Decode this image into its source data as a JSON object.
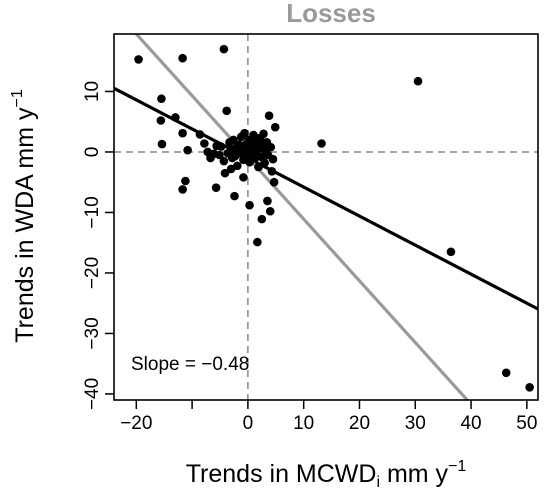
{
  "chart_data": {
    "type": "scatter",
    "title": "Losses",
    "xlabel": "Trends in MCWD",
    "xlabel_subscript": "i",
    "xlabel_units": " mm y",
    "xlabel_superscript": "−1",
    "ylabel": "Trends in WDA mm  y",
    "ylabel_superscript": "−1",
    "annotation": "Slope = −0.48",
    "xlim": [
      -24,
      52
    ],
    "ylim": [
      -41,
      19.5
    ],
    "x_ticks": [
      -20,
      -10,
      0,
      10,
      20,
      30,
      40,
      50
    ],
    "x_tick_labels": [
      "−20",
      "",
      "0",
      "10",
      "20",
      "30",
      "40",
      "50"
    ],
    "y_ticks": [
      -40,
      -30,
      -20,
      -10,
      0,
      10
    ],
    "y_tick_labels": [
      "−40",
      "−30",
      "−20",
      "−10",
      "0",
      "10"
    ],
    "reference_lines": {
      "x": 0,
      "y": 0,
      "style": "dashed"
    },
    "fit_lines": [
      {
        "color": "#000000",
        "slope": -0.48,
        "intercept": -1.0
      },
      {
        "color": "#9a9a9a",
        "slope": -1.02,
        "intercept": -0.9
      }
    ],
    "points": [
      [
        -19.6,
        15.3
      ],
      [
        -15.5,
        8.8
      ],
      [
        -15.6,
        5.2
      ],
      [
        -15.4,
        1.3
      ],
      [
        -13.0,
        5.7
      ],
      [
        -11.7,
        15.5
      ],
      [
        -11.7,
        3.1
      ],
      [
        -10.8,
        0.3
      ],
      [
        -11.2,
        -4.8
      ],
      [
        -11.7,
        -6.2
      ],
      [
        -4.3,
        17.0
      ],
      [
        -8.6,
        2.9
      ],
      [
        -7.8,
        1.4
      ],
      [
        -7.2,
        0.0
      ],
      [
        -6.7,
        -1.0
      ],
      [
        -6.1,
        -0.3
      ],
      [
        -5.6,
        1.0
      ],
      [
        -5.1,
        -0.5
      ],
      [
        -4.8,
        0.9
      ],
      [
        -4.3,
        -1.5
      ],
      [
        -4.1,
        -3.5
      ],
      [
        -3.8,
        6.8
      ],
      [
        -3.6,
        -0.2
      ],
      [
        -3.3,
        1.6
      ],
      [
        -3.0,
        0.4
      ],
      [
        -2.8,
        -1.0
      ],
      [
        -2.6,
        2.0
      ],
      [
        -2.3,
        -0.7
      ],
      [
        -2.0,
        0.8
      ],
      [
        -1.9,
        -2.3
      ],
      [
        -1.6,
        1.2
      ],
      [
        -1.4,
        -0.2
      ],
      [
        -1.2,
        2.5
      ],
      [
        -1.0,
        0.5
      ],
      [
        -0.8,
        -1.3
      ],
      [
        -0.6,
        3.1
      ],
      [
        -0.5,
        0.0
      ],
      [
        -0.3,
        1.3
      ],
      [
        -0.1,
        -0.6
      ],
      [
        0.0,
        0.7
      ],
      [
        0.2,
        2.0
      ],
      [
        0.3,
        -1.7
      ],
      [
        0.5,
        0.4
      ],
      [
        0.7,
        1.5
      ],
      [
        0.8,
        -0.3
      ],
      [
        1.0,
        2.8
      ],
      [
        1.1,
        0.9
      ],
      [
        1.3,
        -1.0
      ],
      [
        1.5,
        0.2
      ],
      [
        1.7,
        1.8
      ],
      [
        1.9,
        -2.5
      ],
      [
        2.0,
        0.6
      ],
      [
        2.2,
        2.3
      ],
      [
        2.4,
        -0.8
      ],
      [
        2.6,
        1.1
      ],
      [
        2.8,
        3.0
      ],
      [
        3.0,
        -1.8
      ],
      [
        3.2,
        0.1
      ],
      [
        3.4,
        1.6
      ],
      [
        3.6,
        -0.5
      ],
      [
        3.8,
        6.0
      ],
      [
        4.1,
        0.8
      ],
      [
        4.5,
        -1.2
      ],
      [
        4.9,
        4.1
      ],
      [
        4.3,
        -3.2
      ],
      [
        4.7,
        -5.0
      ],
      [
        4.0,
        -9.8
      ],
      [
        3.5,
        -8.1
      ],
      [
        2.5,
        -11.1
      ],
      [
        1.7,
        -14.9
      ],
      [
        0.3,
        -8.8
      ],
      [
        -0.8,
        -4.2
      ],
      [
        -2.4,
        -7.3
      ],
      [
        -5.7,
        -5.9
      ],
      [
        -3.0,
        -2.8
      ],
      [
        13.2,
        1.4
      ],
      [
        30.5,
        11.7
      ],
      [
        36.4,
        -16.5
      ],
      [
        46.3,
        -36.5
      ],
      [
        50.5,
        -38.9
      ]
    ]
  }
}
